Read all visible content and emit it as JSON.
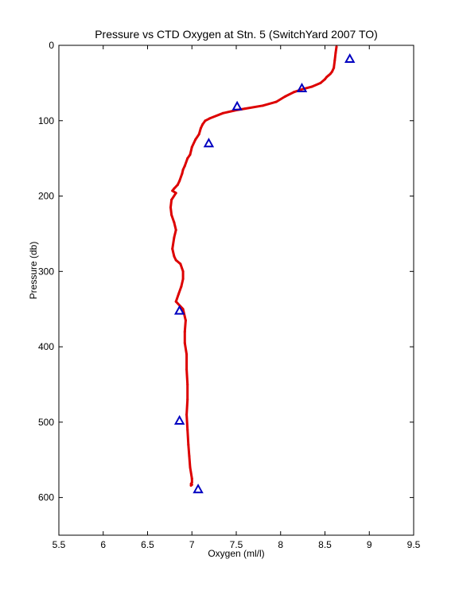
{
  "chart_data": {
    "type": "scatter",
    "title": "Pressure vs CTD Oxygen at Stn. 5 (SwitchYard 2007 TO)",
    "xlabel": "Oxygen (ml/l)",
    "ylabel": "Pressure (db)",
    "xlim": [
      5.5,
      9.5
    ],
    "ylim": [
      0,
      650
    ],
    "y_reversed": true,
    "xticks": [
      "5.5",
      "6",
      "6.5",
      "7",
      "7.5",
      "8",
      "8.5",
      "9",
      "9.5"
    ],
    "yticks": [
      "0",
      "100",
      "200",
      "300",
      "400",
      "500",
      "600"
    ],
    "grid": false,
    "series": [
      {
        "marker": "line",
        "color": "#dd0000",
        "x": [
          8.63,
          8.62,
          8.61,
          8.6,
          8.58,
          8.56,
          8.54,
          8.52,
          8.5,
          8.45,
          8.35,
          8.25,
          8.15,
          8.05,
          7.95,
          7.8,
          7.6,
          7.5,
          7.35,
          7.2,
          7.15,
          7.12,
          7.1,
          7.08,
          7.04,
          7.0,
          6.98,
          6.95,
          6.92,
          6.9,
          6.89,
          6.86,
          6.84,
          6.8,
          6.78,
          6.82,
          6.77,
          6.76,
          6.77,
          6.8,
          6.82,
          6.8,
          6.78,
          6.8,
          6.82,
          6.87,
          6.9,
          6.9,
          6.88,
          6.85,
          6.82,
          6.9,
          6.93,
          6.92,
          6.92,
          6.94,
          6.94,
          6.95,
          6.95,
          6.94,
          6.95,
          6.96,
          6.97,
          6.98,
          7.0,
          7.0,
          6.99,
          7.0,
          6.99
        ],
        "y": [
          2,
          10,
          20,
          30,
          35,
          38,
          40,
          42,
          45,
          50,
          55,
          58,
          62,
          68,
          75,
          80,
          84,
          86,
          90,
          97,
          100,
          105,
          110,
          118,
          125,
          135,
          145,
          150,
          160,
          165,
          170,
          180,
          185,
          190,
          193,
          196,
          205,
          215,
          225,
          235,
          245,
          255,
          270,
          280,
          285,
          290,
          300,
          310,
          320,
          330,
          340,
          350,
          365,
          380,
          395,
          410,
          430,
          450,
          470,
          490,
          510,
          530,
          545,
          560,
          575,
          580,
          582,
          583,
          584
        ]
      },
      {
        "marker": "triangle",
        "color": "#0000c0",
        "x": [
          8.78,
          8.24,
          7.51,
          7.19,
          6.86,
          6.86,
          7.07
        ],
        "y": [
          18,
          57,
          81,
          130,
          352,
          498,
          589
        ]
      }
    ]
  }
}
